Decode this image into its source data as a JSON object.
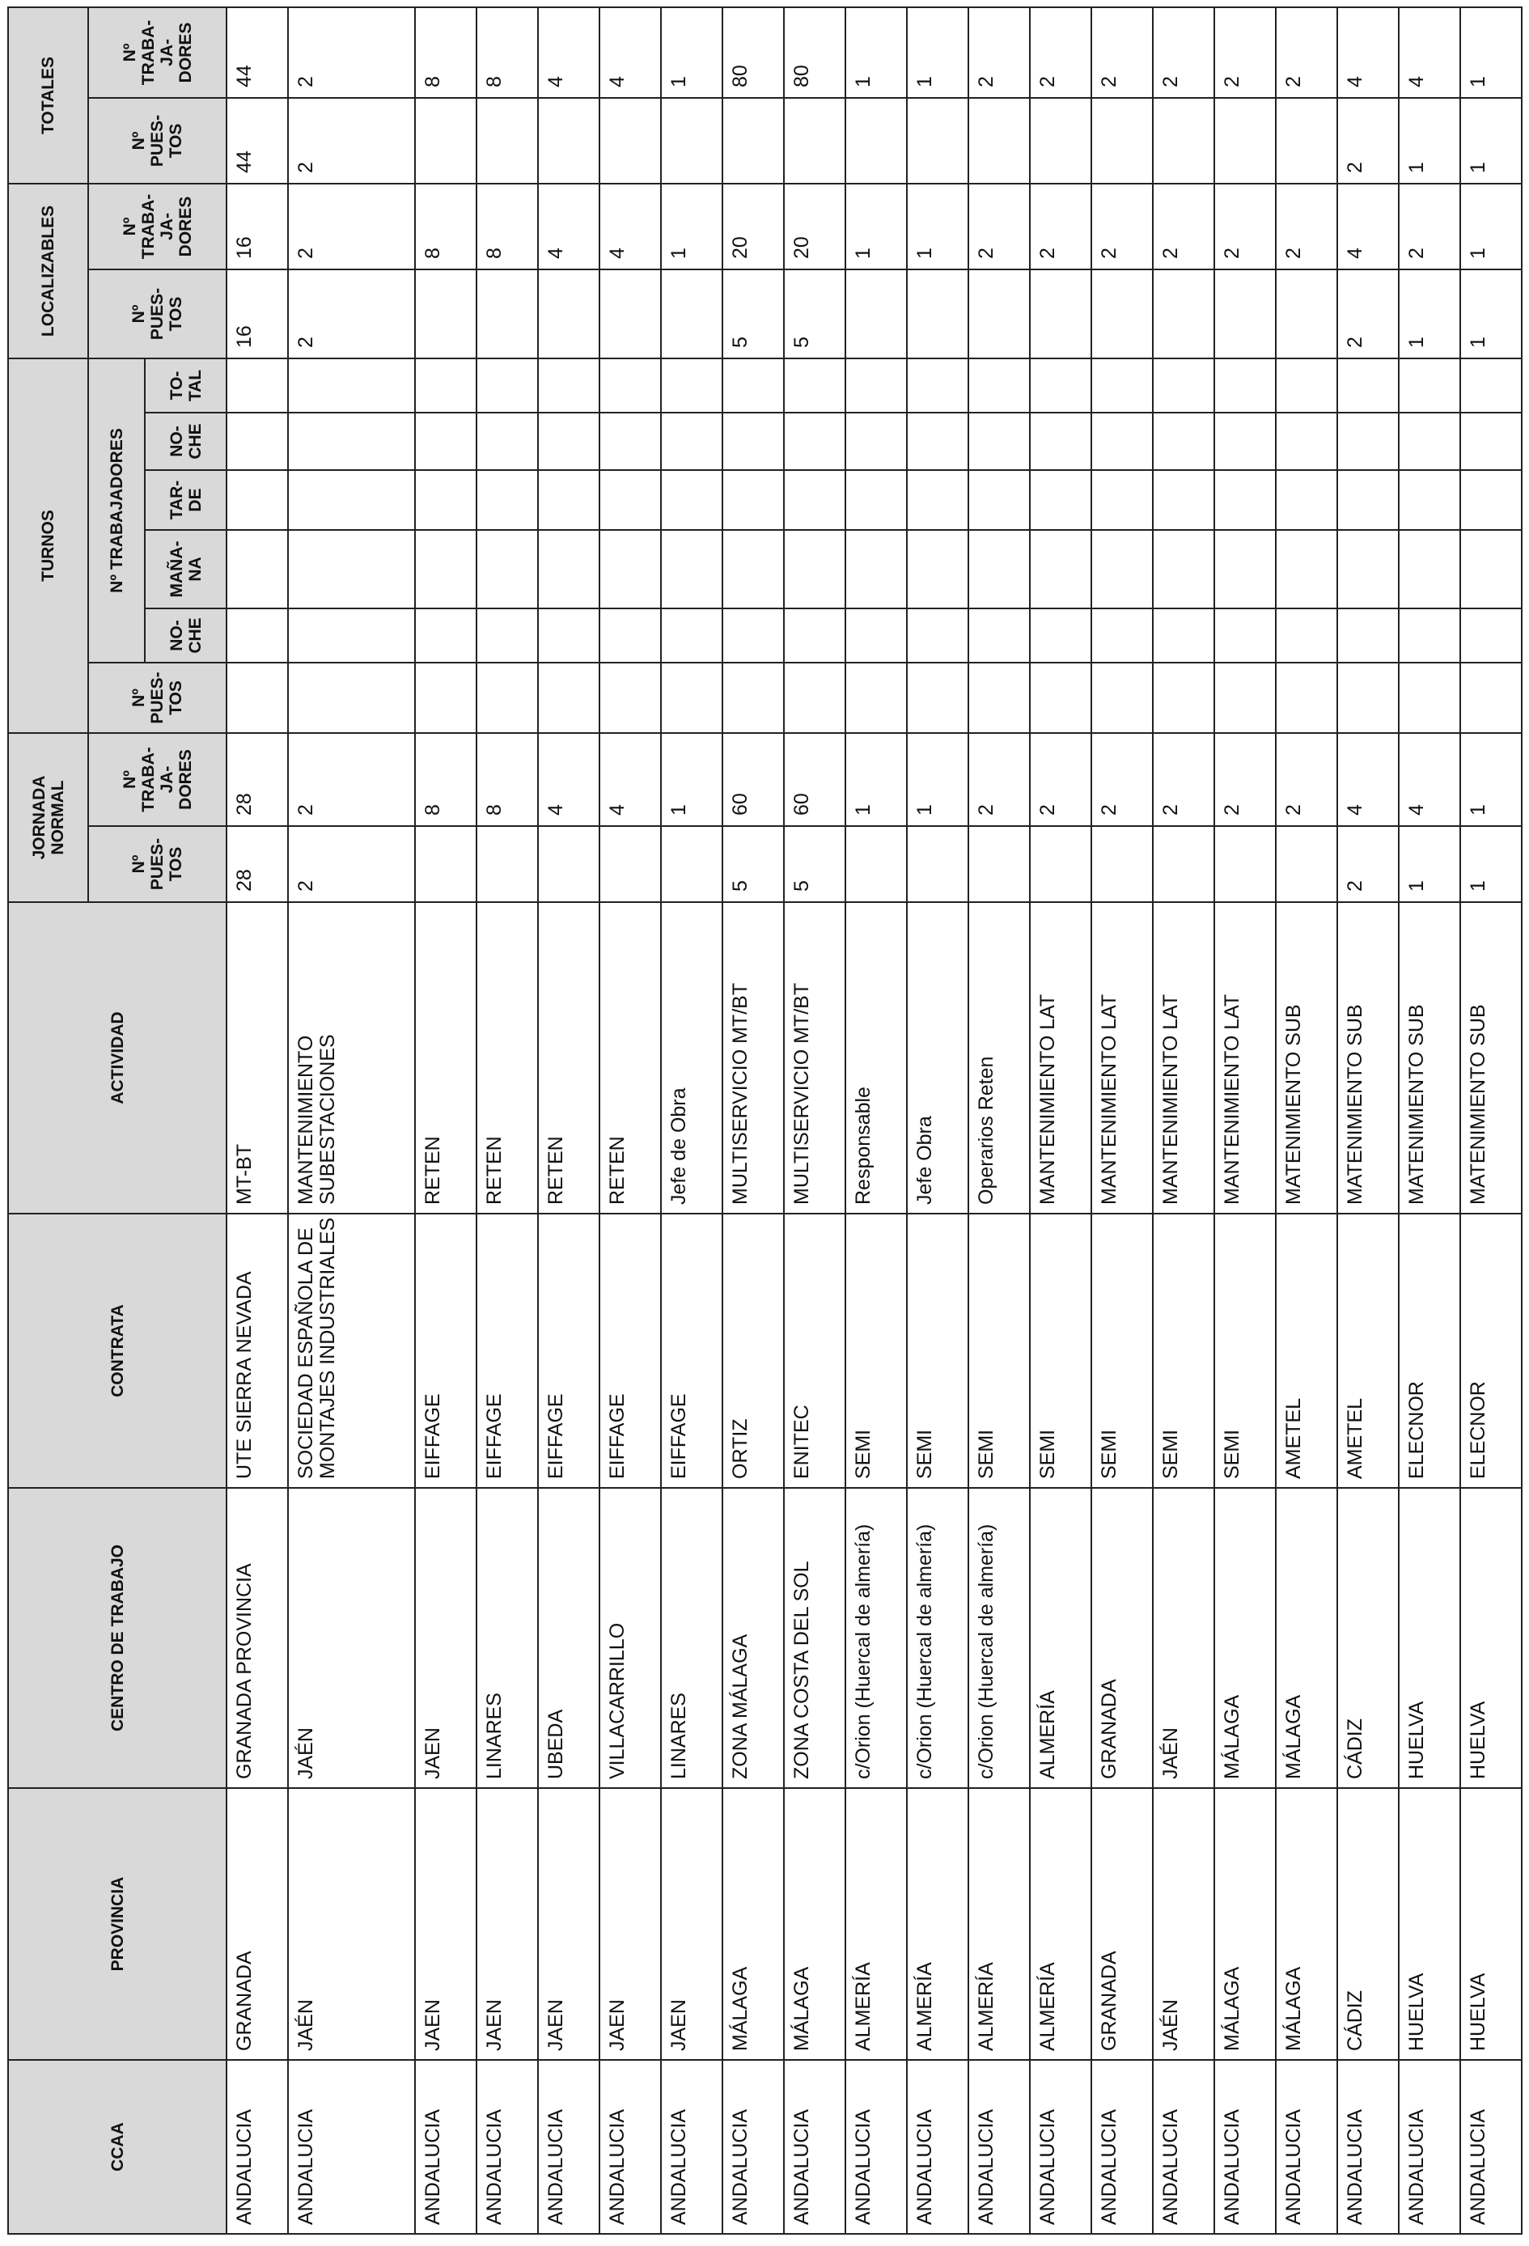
{
  "header": {
    "ccaa": "CCAA",
    "provincia": "PROVINCIA",
    "centro": "CENTRO DE TRABAJO",
    "contrata": "CONTRATA",
    "actividad": "ACTIVIDAD",
    "jornada_normal": "JORNADA\nNORMAL",
    "turnos": "TURNOS",
    "localizables": "LOCALIZABLES",
    "totales": "TOTALES",
    "n_puestos": "Nº\nPUES-\nTOS",
    "n_trabajadores": "Nº\nTRABA-\nJA-\nDORES",
    "n_trabajadores_turnos": "Nº TRABAJADORES",
    "noche": "NO-\nCHE",
    "manana": "MAÑA-\nNA",
    "tarde": "TAR-\nDE",
    "noche2": "NO-\nCHE",
    "total": "TO-\nTAL"
  },
  "rows": [
    [
      "ANDALUCIA",
      "GRANADA",
      "GRANADA PROVINCIA",
      "UTE SIERRA NEVADA",
      "MT-BT",
      "28",
      "28",
      "",
      "",
      "",
      "",
      "",
      "",
      "16",
      "16",
      "44",
      "44"
    ],
    [
      "ANDALUCIA",
      "JAÉN",
      "JAÉN",
      "SOCIEDAD ESPAÑOLA DE MONTAJES INDUSTRIALES",
      "MANTENIMIENTO SUBESTACIONES",
      "2",
      "2",
      "",
      "",
      "",
      "",
      "",
      "",
      "2",
      "2",
      "2",
      "2"
    ],
    [
      "ANDALUCIA",
      "JAEN",
      "JAEN",
      "EIFFAGE",
      "RETEN",
      "",
      "8",
      "",
      "",
      "",
      "",
      "",
      "",
      "",
      "8",
      "",
      "8"
    ],
    [
      "ANDALUCIA",
      "JAEN",
      "LINARES",
      "EIFFAGE",
      "RETEN",
      "",
      "8",
      "",
      "",
      "",
      "",
      "",
      "",
      "",
      "8",
      "",
      "8"
    ],
    [
      "ANDALUCIA",
      "JAEN",
      "UBEDA",
      "EIFFAGE",
      "RETEN",
      "",
      "4",
      "",
      "",
      "",
      "",
      "",
      "",
      "",
      "4",
      "",
      "4"
    ],
    [
      "ANDALUCIA",
      "JAEN",
      "VILLACARRILLO",
      "EIFFAGE",
      "RETEN",
      "",
      "4",
      "",
      "",
      "",
      "",
      "",
      "",
      "",
      "4",
      "",
      "4"
    ],
    [
      "ANDALUCIA",
      "JAEN",
      "LINARES",
      "EIFFAGE",
      "Jefe de Obra",
      "",
      "1",
      "",
      "",
      "",
      "",
      "",
      "",
      "",
      "1",
      "",
      "1"
    ],
    [
      "ANDALUCIA",
      "MÁLAGA",
      "ZONA MÁLAGA",
      "ORTIZ",
      "MULTISERVICIO MT/BT",
      "5",
      "60",
      "",
      "",
      "",
      "",
      "",
      "",
      "5",
      "20",
      "",
      "80"
    ],
    [
      "ANDALUCIA",
      "MÁLAGA",
      "ZONA COSTA DEL SOL",
      "ENITEC",
      "MULTISERVICIO MT/BT",
      "5",
      "60",
      "",
      "",
      "",
      "",
      "",
      "",
      "5",
      "20",
      "",
      "80"
    ],
    [
      "ANDALUCIA",
      "ALMERÍA",
      "c/Orion (Huercal de almería)",
      "SEMI",
      "Responsable",
      "",
      "1",
      "",
      "",
      "",
      "",
      "",
      "",
      "",
      "1",
      "",
      "1"
    ],
    [
      "ANDALUCIA",
      "ALMERÍA",
      "c/Orion (Huercal de almería)",
      "SEMI",
      "Jefe Obra",
      "",
      "1",
      "",
      "",
      "",
      "",
      "",
      "",
      "",
      "1",
      "",
      "1"
    ],
    [
      "ANDALUCIA",
      "ALMERÍA",
      "c/Orion (Huercal de almería)",
      "SEMI",
      "Operarios Reten",
      "",
      "2",
      "",
      "",
      "",
      "",
      "",
      "",
      "",
      "2",
      "",
      "2"
    ],
    [
      "ANDALUCIA",
      "ALMERÍA",
      "ALMERÍA",
      "SEMI",
      "MANTENIMIENTO LAT",
      "",
      "2",
      "",
      "",
      "",
      "",
      "",
      "",
      "",
      "2",
      "",
      "2"
    ],
    [
      "ANDALUCIA",
      "GRANADA",
      "GRANADA",
      "SEMI",
      "MANTENIMIENTO LAT",
      "",
      "2",
      "",
      "",
      "",
      "",
      "",
      "",
      "",
      "2",
      "",
      "2"
    ],
    [
      "ANDALUCIA",
      "JAÉN",
      "JAÉN",
      "SEMI",
      "MANTENIMIENTO LAT",
      "",
      "2",
      "",
      "",
      "",
      "",
      "",
      "",
      "",
      "2",
      "",
      "2"
    ],
    [
      "ANDALUCIA",
      "MÁLAGA",
      "MÁLAGA",
      "SEMI",
      "MANTENIMIENTO LAT",
      "",
      "2",
      "",
      "",
      "",
      "",
      "",
      "",
      "",
      "2",
      "",
      "2"
    ],
    [
      "ANDALUCIA",
      "MÁLAGA",
      "MÁLAGA",
      "AMETEL",
      "MATENIMIENTO SUB",
      "",
      "2",
      "",
      "",
      "",
      "",
      "",
      "",
      "",
      "2",
      "",
      "2"
    ],
    [
      "ANDALUCIA",
      "CÁDIZ",
      "CÁDIZ",
      "AMETEL",
      "MATENIMIENTO SUB",
      "2",
      "4",
      "",
      "",
      "",
      "",
      "",
      "",
      "2",
      "4",
      "2",
      "4"
    ],
    [
      "ANDALUCIA",
      "HUELVA",
      "HUELVA",
      "ELECNOR",
      "MATENIMIENTO SUB",
      "1",
      "4",
      "",
      "",
      "",
      "",
      "",
      "",
      "1",
      "2",
      "1",
      "4"
    ],
    [
      "ANDALUCIA",
      "HUELVA",
      "HUELVA",
      "ELECNOR",
      "MATENIMIENTO SUB",
      "1",
      "1",
      "",
      "",
      "",
      "",
      "",
      "",
      "1",
      "1",
      "1",
      "1"
    ]
  ]
}
